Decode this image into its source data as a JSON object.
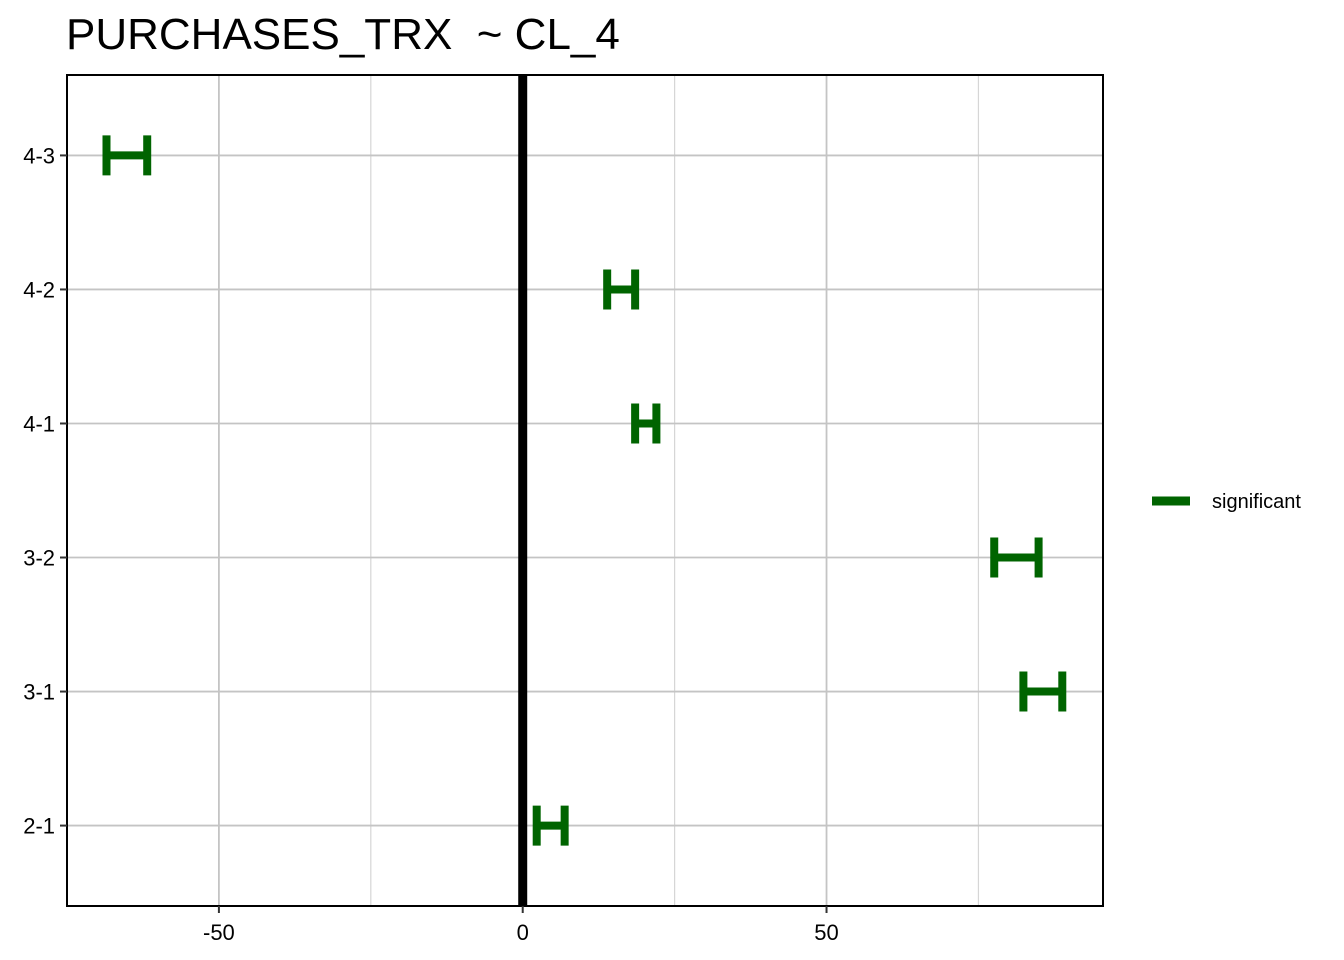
{
  "chart_data": {
    "type": "errorbar",
    "title": "PURCHASES_TRX  ~ CL_4",
    "xlabel": "",
    "ylabel": "",
    "xlim": [
      -75,
      95.5
    ],
    "x_ticks": [
      -50,
      0,
      50
    ],
    "x_minor_ticks": [
      -75,
      -25,
      25,
      75
    ],
    "categories": [
      "2-1",
      "3-1",
      "3-2",
      "4-1",
      "4-2",
      "4-3"
    ],
    "reference_line": 0,
    "grid": true,
    "legend_position": "right",
    "series": [
      {
        "name": "significant",
        "color": "#006400",
        "points": [
          {
            "category": "4-3",
            "low": -68.5,
            "high": -61.8
          },
          {
            "category": "4-2",
            "low": 13.9,
            "high": 18.5
          },
          {
            "category": "4-1",
            "low": 18.5,
            "high": 22.0
          },
          {
            "category": "3-2",
            "low": 77.6,
            "high": 84.9
          },
          {
            "category": "3-1",
            "low": 82.4,
            "high": 88.8
          },
          {
            "category": "2-1",
            "low": 2.3,
            "high": 6.9
          }
        ]
      }
    ]
  }
}
